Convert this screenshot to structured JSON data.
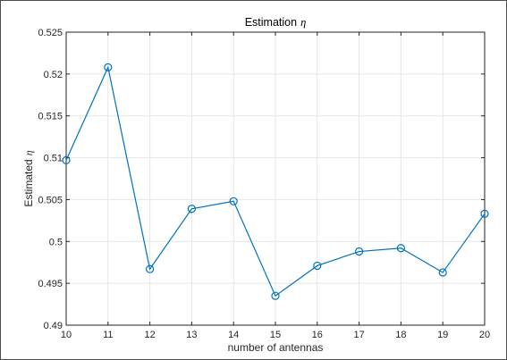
{
  "chart_data": {
    "type": "line",
    "title": "Estimation",
    "title_symbol": "η",
    "xlabel": "number of antennas",
    "ylabel": "Estimated",
    "ylabel_symbol": "η",
    "xlim": [
      10,
      20
    ],
    "ylim": [
      0.49,
      0.525
    ],
    "xticks": [
      "10",
      "11",
      "12",
      "13",
      "14",
      "15",
      "16",
      "17",
      "18",
      "19",
      "20"
    ],
    "yticks": [
      "0.49",
      "0.495",
      "0.5",
      "0.505",
      "0.51",
      "0.515",
      "0.52",
      "0.525"
    ],
    "grid": true,
    "marker": "circle",
    "series": [
      {
        "x": [
          10,
          11,
          12,
          13,
          14,
          15,
          16,
          17,
          18,
          19,
          20
        ],
        "values": [
          0.5097,
          0.5208,
          0.4967,
          0.5039,
          0.5048,
          0.4935,
          0.4971,
          0.4988,
          0.4992,
          0.4963,
          0.5033
        ]
      }
    ],
    "colors": {
      "line": "#0072BD",
      "grid": "#e6e6e6",
      "axis": "#262626"
    }
  }
}
